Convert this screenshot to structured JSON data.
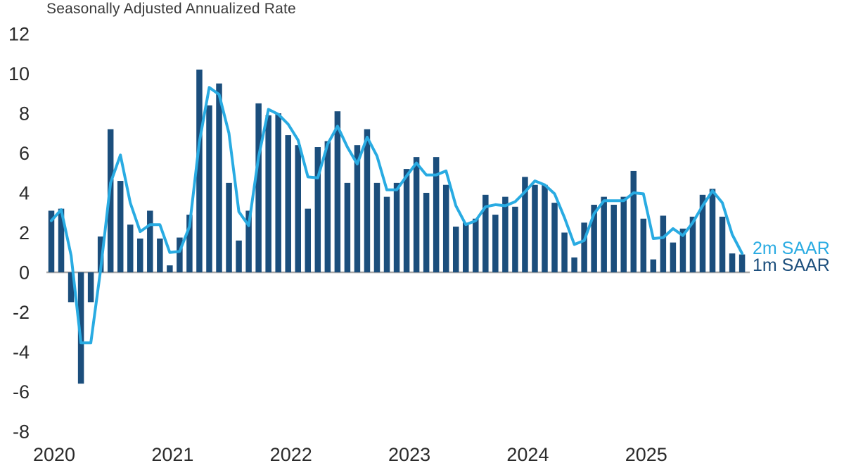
{
  "title": "Seasonally Adjusted Annualized Rate",
  "legend": {
    "line_label": "2m SAAR",
    "bar_label": "1m SAAR"
  },
  "colors": {
    "bars": "#1b4e7c",
    "line": "#29abe2",
    "axis": "#a8a8a8",
    "tick_text": "#2b2b2b"
  },
  "chart_data": {
    "type": "bar",
    "title": "Seasonally Adjusted Annualized Rate",
    "xlabel": "",
    "ylabel": "",
    "ylim": [
      -8,
      12
    ],
    "yticks": [
      12,
      10,
      8,
      6,
      4,
      2,
      0,
      -2,
      -4,
      -6,
      -8
    ],
    "xticklabels": [
      "2020",
      "2021",
      "2022",
      "2023",
      "2024",
      "2025"
    ],
    "grid": false,
    "legend_position": "right-of-last-point",
    "x": [
      "2020-01",
      "2020-02",
      "2020-03",
      "2020-04",
      "2020-05",
      "2020-06",
      "2020-07",
      "2020-08",
      "2020-09",
      "2020-10",
      "2020-11",
      "2020-12",
      "2021-01",
      "2021-02",
      "2021-03",
      "2021-04",
      "2021-05",
      "2021-06",
      "2021-07",
      "2021-08",
      "2021-09",
      "2021-10",
      "2021-11",
      "2021-12",
      "2022-01",
      "2022-02",
      "2022-03",
      "2022-04",
      "2022-05",
      "2022-06",
      "2022-07",
      "2022-08",
      "2022-09",
      "2022-10",
      "2022-11",
      "2022-12",
      "2023-01",
      "2023-02",
      "2023-03",
      "2023-04",
      "2023-05",
      "2023-06",
      "2023-07",
      "2023-08",
      "2023-09",
      "2023-10",
      "2023-11",
      "2023-12",
      "2024-01",
      "2024-02",
      "2024-03",
      "2024-04",
      "2024-05",
      "2024-06",
      "2024-07",
      "2024-08",
      "2024-09",
      "2024-10",
      "2024-11",
      "2024-12",
      "2025-01",
      "2025-02",
      "2025-03",
      "2025-04",
      "2025-05",
      "2025-06",
      "2025-07",
      "2025-08",
      "2025-09",
      "2025-10",
      "2025-11"
    ],
    "series": [
      {
        "name": "1m SAAR",
        "type": "bar",
        "color": "#1b4e7c",
        "values": [
          3.1,
          3.2,
          -1.5,
          -5.6,
          -1.5,
          1.8,
          7.2,
          4.6,
          2.4,
          1.7,
          3.1,
          1.7,
          0.35,
          1.75,
          2.9,
          10.2,
          8.4,
          9.5,
          4.5,
          1.6,
          3.1,
          8.5,
          7.9,
          8.0,
          6.9,
          6.4,
          3.2,
          6.3,
          6.6,
          8.1,
          4.5,
          6.4,
          7.2,
          4.5,
          3.8,
          4.5,
          5.2,
          5.8,
          4.0,
          5.8,
          4.4,
          2.3,
          2.5,
          2.7,
          3.9,
          2.9,
          3.8,
          3.3,
          4.8,
          4.4,
          4.4,
          3.5,
          2.0,
          0.75,
          2.5,
          3.4,
          3.8,
          3.4,
          3.8,
          5.1,
          2.7,
          0.65,
          2.85,
          1.5,
          2.2,
          2.8,
          3.9,
          4.2,
          2.8,
          0.95,
          0.9
        ]
      },
      {
        "name": "2m SAAR",
        "type": "line",
        "color": "#29abe2",
        "values": [
          2.6,
          3.15,
          0.85,
          -3.55,
          -3.55,
          0.15,
          4.5,
          5.9,
          3.5,
          2.05,
          2.4,
          2.4,
          1.0,
          1.05,
          2.3,
          6.55,
          9.3,
          8.95,
          7.0,
          3.05,
          2.35,
          5.8,
          8.2,
          7.95,
          7.45,
          6.65,
          4.8,
          4.75,
          6.45,
          7.35,
          6.3,
          5.45,
          6.8,
          5.85,
          4.15,
          4.15,
          4.85,
          5.5,
          4.9,
          4.9,
          5.1,
          3.35,
          2.4,
          2.6,
          3.3,
          3.4,
          3.35,
          3.55,
          4.05,
          4.6,
          4.4,
          3.95,
          2.75,
          1.4,
          1.6,
          2.95,
          3.6,
          3.6,
          3.6,
          4.0,
          3.95,
          1.7,
          1.75,
          2.2,
          1.85,
          2.5,
          3.35,
          4.1,
          3.5,
          1.9,
          0.95
        ]
      }
    ]
  }
}
